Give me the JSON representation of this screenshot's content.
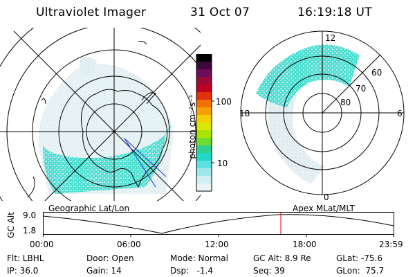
{
  "header": {
    "title": "Ultraviolet Imager",
    "date": "31 Oct 07",
    "time": "16:19:18 UT"
  },
  "colorbar": {
    "unit_label": "photon cm⁻²s⁻¹",
    "ticks": [
      "100",
      "10"
    ],
    "colors": [
      "#000000",
      "#3b0a3b",
      "#6a0d5a",
      "#9a0b3a",
      "#c40020",
      "#e23010",
      "#f07000",
      "#f4a000",
      "#f2d000",
      "#d8e800",
      "#a8e400",
      "#6cdc30",
      "#30d090",
      "#20d8c8",
      "#5ee0e0",
      "#9ee8ec",
      "#cfeff2",
      "#e8f4f6"
    ]
  },
  "left_panel": {
    "label": "Geographic Lat/Lon"
  },
  "right_panel": {
    "label": "Apex MLat/MLT",
    "mlt_labels": {
      "top": "12",
      "bottom": "0",
      "left": "18",
      "right": "6"
    },
    "lat_labels": [
      "60",
      "70",
      "80"
    ]
  },
  "timeline": {
    "axis_label": "GC Alt",
    "y_ticks": [
      "9.0",
      "1.8"
    ],
    "x_ticks": [
      "00:00",
      "06:00",
      "12:00",
      "18:00",
      "23:59"
    ],
    "marker_color": "#e00000"
  },
  "info": {
    "flt": "Flt: LBHL",
    "ip": "IP: 36.0",
    "door": "Door: Open",
    "gain": "Gain: 14",
    "mode": "Mode: Normal",
    "dsp": "Dsp:   -1.4",
    "gc_alt": "GC Alt: 8.9 Re",
    "seq": "Seq: 39",
    "glat": "GLat: -75.6",
    "glon": "GLon:  75.7"
  }
}
